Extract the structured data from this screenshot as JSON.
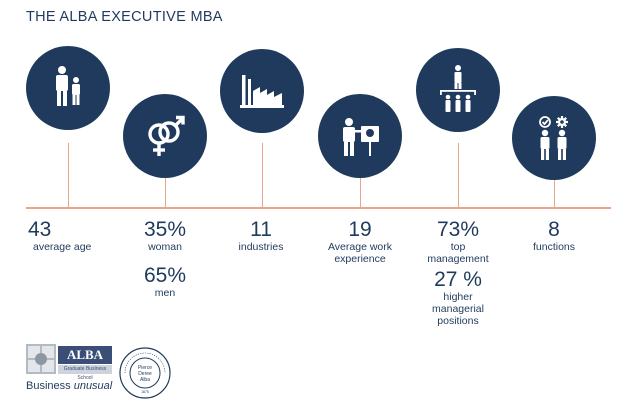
{
  "header": {
    "title": "THE ALBA EXECUTIVE MBA"
  },
  "colors": {
    "navy": "#1f3a5c",
    "accent": "#e8a58b"
  },
  "stats": [
    {
      "icon": "people-icon",
      "value": "43",
      "label": [
        "average age"
      ]
    },
    {
      "icon": "gender-icon",
      "value": "35%",
      "label": [
        "woman"
      ],
      "value2": "65%",
      "label2": [
        "men"
      ]
    },
    {
      "icon": "factory-icon",
      "value": "11",
      "label": [
        "industries"
      ]
    },
    {
      "icon": "presenter-icon",
      "value": "19",
      "label": [
        "Average work",
        "experience"
      ]
    },
    {
      "icon": "hierarchy-icon",
      "value": "73%",
      "label": [
        "top",
        "management"
      ],
      "value2": "27 %",
      "label2": [
        "higher",
        "managerial",
        "positions"
      ]
    },
    {
      "icon": "functions-icon",
      "value": "8",
      "label": [
        "functions"
      ]
    }
  ],
  "footer": {
    "alba": {
      "name": "ALBA",
      "sub": "Graduate Business School",
      "tag_bold": "Business",
      "tag_italic": "unusual"
    },
    "seal": {
      "ring_text": "THE AMERICAN COLLEGE OF GREECE",
      "center": [
        "Pierce",
        "Deree",
        "Alba"
      ],
      "est": "1875"
    }
  }
}
